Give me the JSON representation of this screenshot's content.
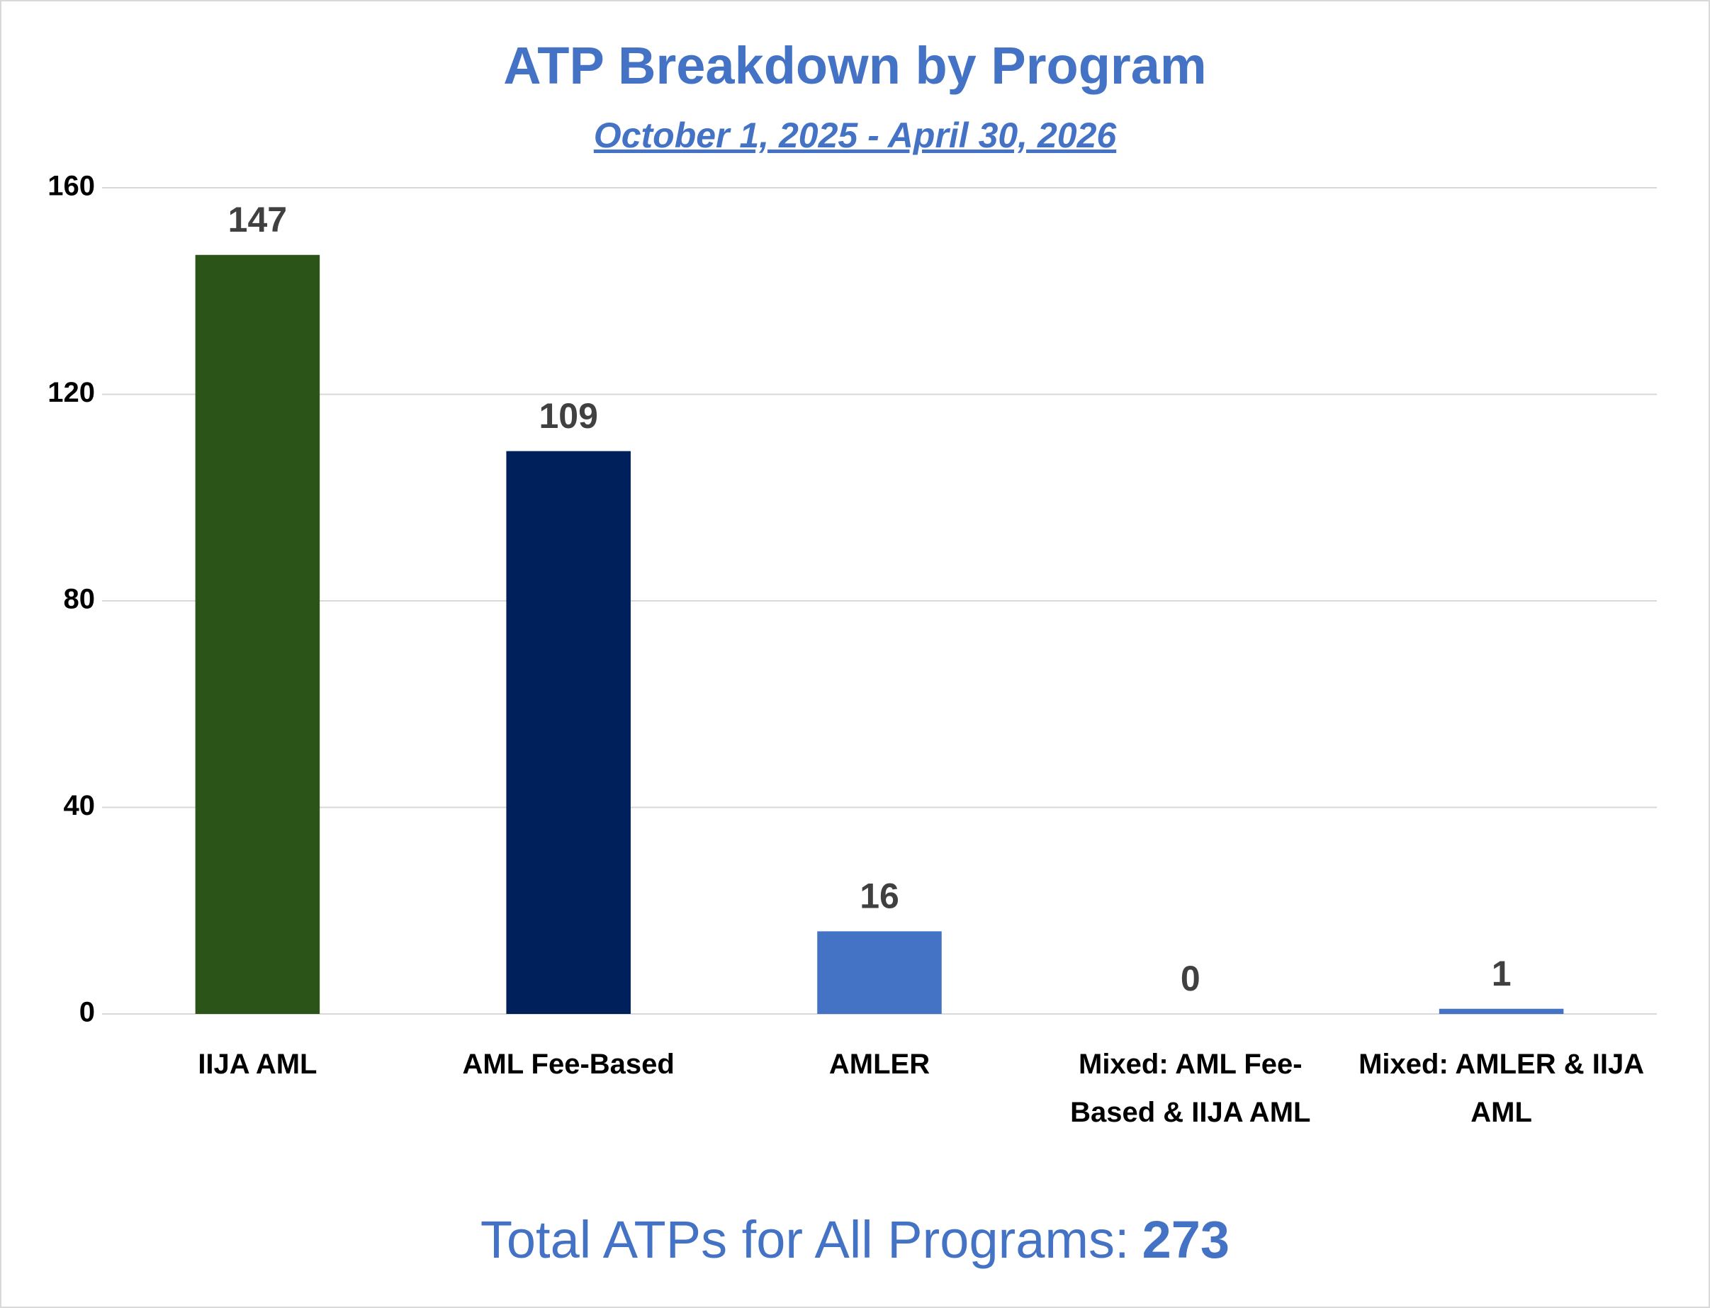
{
  "chart_data": {
    "type": "bar",
    "title": "ATP Breakdown by Program",
    "subtitle": "October 1, 2025 - April 30, 2026",
    "categories": [
      "IIJA AML",
      "AML Fee-Based",
      "AMLER",
      "Mixed: AML Fee-Based & IIJA AML",
      "Mixed: AMLER & IIJA AML"
    ],
    "values": [
      147,
      109,
      16,
      0,
      1
    ],
    "colors": [
      "#2a5418",
      "#00205b",
      "#4472c4",
      "#4472c4",
      "#4472c4"
    ],
    "ylim": [
      0,
      160
    ],
    "yticks": [
      0,
      40,
      80,
      120,
      160
    ],
    "grid": true
  },
  "footer": {
    "label": "Total ATPs for All Programs:",
    "total": 273
  }
}
